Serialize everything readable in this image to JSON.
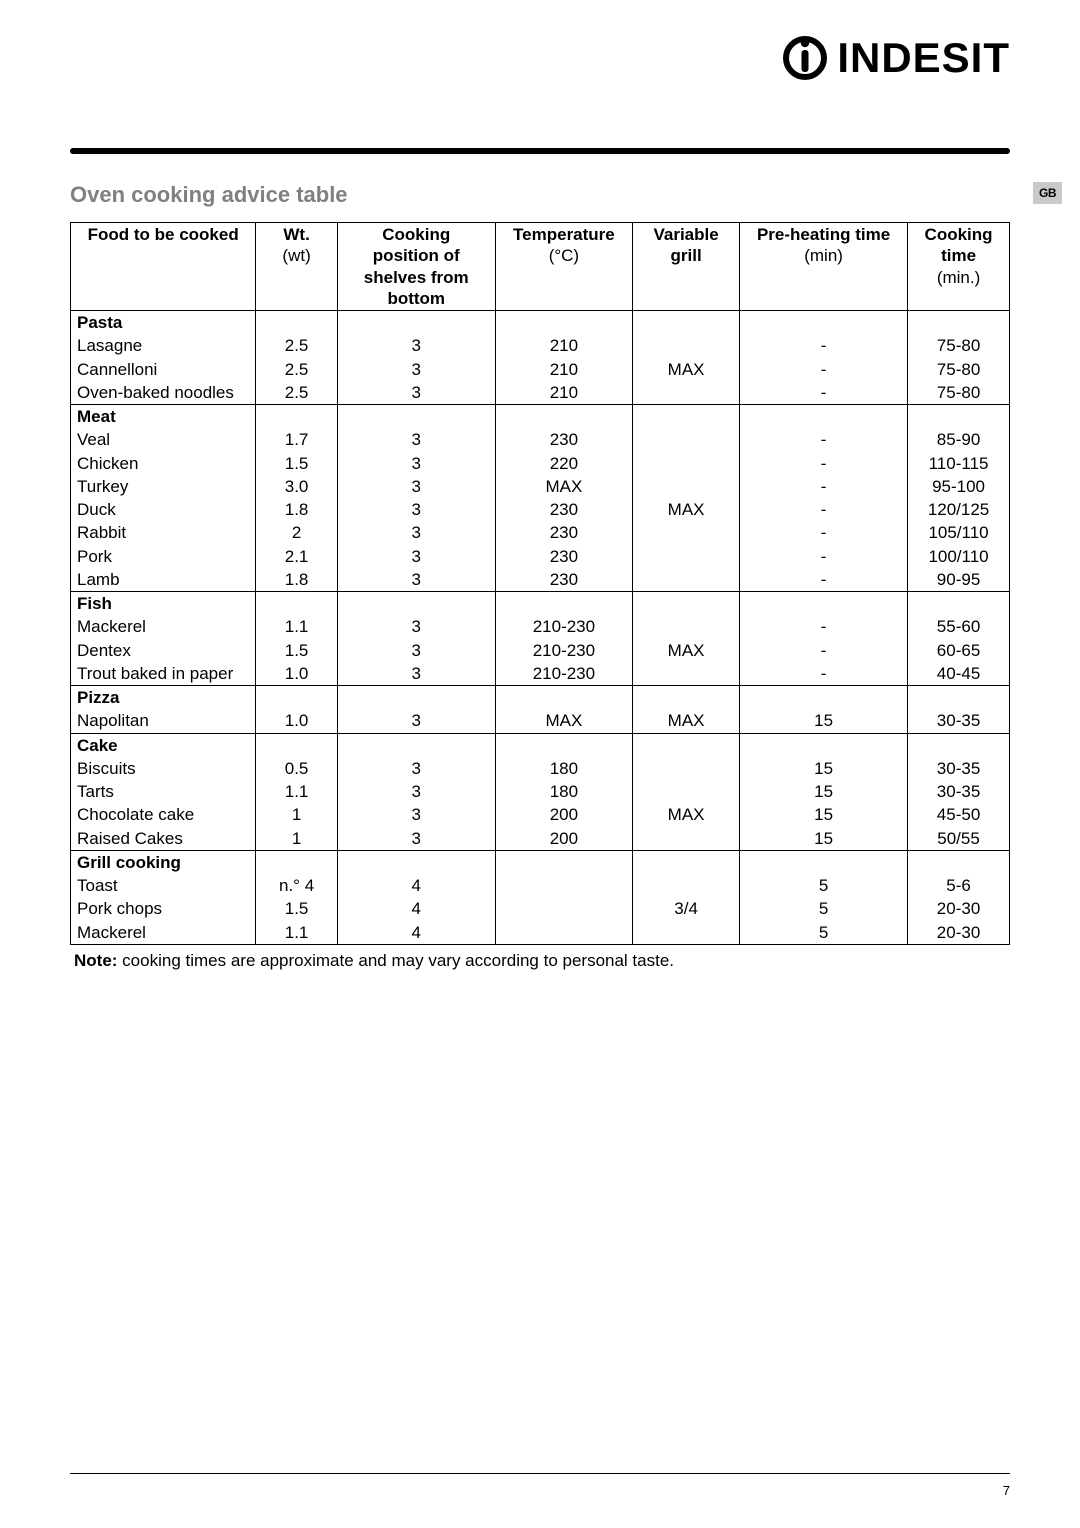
{
  "brand": "INDESIT",
  "side_tab": "GB",
  "page_number": "7",
  "section_title": "Oven cooking advice table",
  "note_label": "Note:",
  "note_text": " cooking times are approximate and may vary according to personal taste.",
  "colors": {
    "title_gray": "#808080",
    "tab_bg": "#c9c9c9",
    "rule": "#000000",
    "text": "#000000",
    "background": "#ffffff"
  },
  "columns": [
    {
      "head": "Food to be cooked",
      "sub": "",
      "align": "left"
    },
    {
      "head": "Wt.",
      "sub": "(wt)",
      "align": "center"
    },
    {
      "head": "Cooking position of shelves from bottom",
      "sub": "",
      "align": "center"
    },
    {
      "head": "Temperature",
      "sub": "(°C)",
      "align": "center"
    },
    {
      "head": "Variable grill",
      "sub": "",
      "align": "center"
    },
    {
      "head": "Pre-heating time",
      "sub": "(min)",
      "align": "center"
    },
    {
      "head": "Cooking time",
      "sub": "(min.)",
      "align": "center"
    }
  ],
  "header_bold_lines": {
    "0": [
      "Food to be cooked"
    ],
    "1": [
      "Wt."
    ],
    "2": [
      "Cooking",
      "position of",
      "shelves from",
      "bottom"
    ],
    "3": [
      "Temperature"
    ],
    "4": [
      "Variable",
      "grill"
    ],
    "5": [
      "Pre-heating time"
    ],
    "6": [
      "Cooking",
      "time"
    ]
  },
  "header_sub_lines": {
    "1": "(wt)",
    "3": "(°C)",
    "5": "(min)",
    "6": "(min.)"
  },
  "sections": [
    {
      "name": "Pasta",
      "grill": "MAX",
      "rows": [
        {
          "food": "Lasagne",
          "wt": "2.5",
          "pos": "3",
          "temp": "210",
          "pre": "-",
          "time": "75-80"
        },
        {
          "food": "Cannelloni",
          "wt": "2.5",
          "pos": "3",
          "temp": "210",
          "pre": "-",
          "time": "75-80"
        },
        {
          "food": "Oven-baked noodles",
          "wt": "2.5",
          "pos": "3",
          "temp": "210",
          "pre": "-",
          "time": "75-80"
        }
      ]
    },
    {
      "name": "Meat",
      "grill": "MAX",
      "rows": [
        {
          "food": "Veal",
          "wt": "1.7",
          "pos": "3",
          "temp": "230",
          "pre": "-",
          "time": "85-90"
        },
        {
          "food": "Chicken",
          "wt": "1.5",
          "pos": "3",
          "temp": "220",
          "pre": "-",
          "time": "110-115"
        },
        {
          "food": "Turkey",
          "wt": "3.0",
          "pos": "3",
          "temp": "MAX",
          "pre": "-",
          "time": "95-100"
        },
        {
          "food": "Duck",
          "wt": "1.8",
          "pos": "3",
          "temp": "230",
          "pre": "-",
          "time": "120/125"
        },
        {
          "food": "Rabbit",
          "wt": "2",
          "pos": "3",
          "temp": "230",
          "pre": "-",
          "time": "105/110"
        },
        {
          "food": "Pork",
          "wt": "2.1",
          "pos": "3",
          "temp": "230",
          "pre": "-",
          "time": "100/110"
        },
        {
          "food": "Lamb",
          "wt": "1.8",
          "pos": "3",
          "temp": "230",
          "pre": "-",
          "time": "90-95"
        }
      ]
    },
    {
      "name": "Fish",
      "grill": "MAX",
      "rows": [
        {
          "food": "Mackerel",
          "wt": "1.1",
          "pos": "3",
          "temp": "210-230",
          "pre": "-",
          "time": "55-60"
        },
        {
          "food": "Dentex",
          "wt": "1.5",
          "pos": "3",
          "temp": "210-230",
          "pre": "-",
          "time": "60-65"
        },
        {
          "food": "Trout baked in paper",
          "wt": "1.0",
          "pos": "3",
          "temp": "210-230",
          "pre": "-",
          "time": "40-45"
        }
      ]
    },
    {
      "name": "Pizza",
      "grill": "MAX",
      "rows": [
        {
          "food": "Napolitan",
          "wt": "1.0",
          "pos": "3",
          "temp": "MAX",
          "pre": "15",
          "time": "30-35"
        }
      ]
    },
    {
      "name": "Cake",
      "grill": "MAX",
      "rows": [
        {
          "food": "Biscuits",
          "wt": "0.5",
          "pos": "3",
          "temp": "180",
          "pre": "15",
          "time": "30-35"
        },
        {
          "food": "Tarts",
          "wt": "1.1",
          "pos": "3",
          "temp": "180",
          "pre": "15",
          "time": "30-35"
        },
        {
          "food": "Chocolate cake",
          "wt": "1",
          "pos": "3",
          "temp": "200",
          "pre": "15",
          "time": "45-50"
        },
        {
          "food": "Raised Cakes",
          "wt": "1",
          "pos": "3",
          "temp": "200",
          "pre": "15",
          "time": "50/55"
        }
      ]
    },
    {
      "name": "Grill cooking",
      "grill": "3/4",
      "rows": [
        {
          "food": "Toast",
          "wt": "n.° 4",
          "pos": "4",
          "temp": "",
          "pre": "5",
          "time": "5-6"
        },
        {
          "food": "Pork chops",
          "wt": "1.5",
          "pos": "4",
          "temp": "",
          "pre": "5",
          "time": "20-30"
        },
        {
          "food": "Mackerel",
          "wt": "1.1",
          "pos": "4",
          "temp": "",
          "pre": "5",
          "time": "20-30"
        }
      ]
    }
  ]
}
